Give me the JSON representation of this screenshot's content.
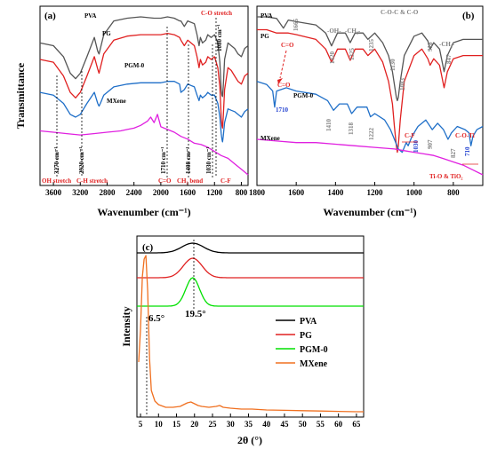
{
  "chart_data": [
    {
      "id": "a",
      "panel_label": "(a)",
      "type": "line",
      "xlabel": "Wavenumber (cm⁻¹)",
      "ylabel": "Transmittance",
      "xlim": [
        3800,
        700
      ],
      "x_reversed": true,
      "x_ticks": [
        3600,
        3200,
        2800,
        2400,
        2000,
        1600,
        1200,
        800
      ],
      "series": [
        {
          "name": "PVA",
          "color": "#555555",
          "x": [
            3800,
            3600,
            3450,
            3350,
            3270,
            3200,
            3100,
            2990,
            2940,
            2920,
            2900,
            2850,
            2700,
            2500,
            2300,
            2100,
            2000,
            1900,
            1800,
            1720,
            1700,
            1650,
            1600,
            1500,
            1460,
            1430,
            1410,
            1380,
            1330,
            1300,
            1250,
            1200,
            1150,
            1120,
            1100,
            1090,
            1080,
            1070,
            1050,
            1000,
            950,
            900,
            850,
            800,
            750,
            700
          ],
          "y": [
            0.74,
            0.72,
            0.64,
            0.52,
            0.48,
            0.52,
            0.64,
            0.78,
            0.68,
            0.66,
            0.7,
            0.8,
            0.9,
            0.92,
            0.93,
            0.92,
            0.92,
            0.93,
            0.92,
            0.9,
            0.9,
            0.86,
            0.9,
            0.88,
            0.8,
            0.72,
            0.78,
            0.74,
            0.76,
            0.8,
            0.78,
            0.8,
            0.74,
            0.6,
            0.4,
            0.36,
            0.35,
            0.42,
            0.62,
            0.74,
            0.72,
            0.7,
            0.66,
            0.64,
            0.7,
            0.72
          ]
        },
        {
          "name": "PG",
          "color": "#e02020",
          "x": [
            3800,
            3600,
            3450,
            3350,
            3270,
            3200,
            3100,
            2990,
            2940,
            2920,
            2900,
            2850,
            2700,
            2500,
            2300,
            2100,
            2000,
            1900,
            1800,
            1720,
            1700,
            1650,
            1600,
            1500,
            1460,
            1430,
            1410,
            1380,
            1330,
            1300,
            1250,
            1200,
            1150,
            1120,
            1100,
            1090,
            1080,
            1070,
            1050,
            1000,
            950,
            900,
            850,
            800,
            750,
            700
          ],
          "y": [
            0.62,
            0.6,
            0.5,
            0.38,
            0.34,
            0.38,
            0.5,
            0.64,
            0.55,
            0.52,
            0.56,
            0.66,
            0.76,
            0.79,
            0.8,
            0.8,
            0.8,
            0.81,
            0.8,
            0.78,
            0.76,
            0.72,
            0.76,
            0.72,
            0.64,
            0.56,
            0.62,
            0.58,
            0.6,
            0.64,
            0.62,
            0.64,
            0.56,
            0.42,
            0.2,
            0.14,
            0.12,
            0.2,
            0.4,
            0.56,
            0.54,
            0.5,
            0.46,
            0.44,
            0.5,
            0.52
          ]
        },
        {
          "name": "PGM-0",
          "color": "#1f6fc8",
          "x": [
            3800,
            3600,
            3450,
            3350,
            3270,
            3200,
            3100,
            2990,
            2940,
            2920,
            2900,
            2850,
            2700,
            2500,
            2300,
            2100,
            2000,
            1900,
            1800,
            1720,
            1700,
            1650,
            1600,
            1500,
            1460,
            1430,
            1410,
            1380,
            1330,
            1300,
            1250,
            1200,
            1150,
            1120,
            1100,
            1090,
            1080,
            1070,
            1050,
            1000,
            950,
            900,
            850,
            800,
            750,
            700
          ],
          "y": [
            0.38,
            0.36,
            0.3,
            0.22,
            0.2,
            0.22,
            0.3,
            0.38,
            0.3,
            0.28,
            0.3,
            0.36,
            0.42,
            0.44,
            0.45,
            0.45,
            0.45,
            0.46,
            0.46,
            0.44,
            0.38,
            0.4,
            0.44,
            0.42,
            0.36,
            0.32,
            0.36,
            0.34,
            0.36,
            0.38,
            0.36,
            0.36,
            0.3,
            0.2,
            0.08,
            0.04,
            0.02,
            0.06,
            0.16,
            0.26,
            0.25,
            0.24,
            0.22,
            0.2,
            0.24,
            0.26
          ]
        },
        {
          "name": "MXene",
          "color": "#e020e0",
          "x": [
            3800,
            3600,
            3400,
            3200,
            3000,
            2800,
            2600,
            2500,
            2400,
            2300,
            2200,
            2150,
            2100,
            2050,
            2000,
            1950,
            1900,
            1800,
            1700,
            1600,
            1500,
            1400,
            1300,
            1200,
            1100,
            1000,
            900,
            800,
            700
          ],
          "y": [
            0.1,
            0.09,
            0.08,
            0.07,
            0.08,
            0.09,
            0.1,
            0.11,
            0.12,
            0.14,
            0.17,
            0.2,
            0.16,
            0.22,
            0.13,
            0.12,
            0.11,
            0.09,
            0.06,
            0.04,
            0.01,
            0.0,
            -0.02,
            -0.05,
            -0.08,
            -0.1,
            -0.14,
            -0.18,
            -0.22
          ]
        }
      ],
      "annotations": [
        {
          "text": "OH stretch",
          "color": "#e02020"
        },
        {
          "text": "3270 cm⁻¹",
          "color": "#000000"
        },
        {
          "text": "2920 cm⁻¹",
          "color": "#000000"
        },
        {
          "text": "C-H stretch",
          "color": "#e02020"
        },
        {
          "text": "1710 cm⁻¹",
          "color": "#000000"
        },
        {
          "text": "C=O",
          "color": "#e02020"
        },
        {
          "text": "1408 cm⁻¹",
          "color": "#000000"
        },
        {
          "text": "CH₂ bend",
          "color": "#e02020"
        },
        {
          "text": "1030 cm⁻¹",
          "color": "#000000"
        },
        {
          "text": "C-F",
          "color": "#e02020"
        },
        {
          "text": "C-O stretch",
          "color": "#e02020"
        },
        {
          "text": "1080 cm⁻¹",
          "color": "#000000"
        }
      ]
    },
    {
      "id": "b",
      "panel_label": "(b)",
      "type": "line",
      "xlabel": "Wavenumber (cm⁻¹)",
      "xlim": [
        1800,
        650
      ],
      "x_reversed": true,
      "x_ticks": [
        1800,
        1600,
        1400,
        1200,
        1000,
        800
      ],
      "series": [
        {
          "name": "PVA",
          "color": "#555555",
          "x": [
            1800,
            1750,
            1700,
            1665,
            1640,
            1600,
            1500,
            1450,
            1420,
            1390,
            1350,
            1325,
            1300,
            1260,
            1235,
            1200,
            1160,
            1130,
            1110,
            1100,
            1090,
            1085,
            1080,
            1070,
            1050,
            1000,
            960,
            930,
            918,
            900,
            870,
            847,
            830,
            800,
            750,
            700,
            650
          ],
          "y": [
            0.9,
            0.9,
            0.89,
            0.83,
            0.88,
            0.87,
            0.85,
            0.8,
            0.72,
            0.8,
            0.8,
            0.74,
            0.8,
            0.8,
            0.76,
            0.8,
            0.74,
            0.66,
            0.56,
            0.48,
            0.4,
            0.38,
            0.4,
            0.5,
            0.66,
            0.78,
            0.8,
            0.75,
            0.7,
            0.74,
            0.7,
            0.56,
            0.66,
            0.74,
            0.76,
            0.76,
            0.76
          ]
        },
        {
          "name": "PG",
          "color": "#e02020",
          "x": [
            1800,
            1750,
            1700,
            1665,
            1640,
            1600,
            1500,
            1450,
            1420,
            1390,
            1350,
            1325,
            1300,
            1260,
            1235,
            1200,
            1160,
            1130,
            1110,
            1100,
            1090,
            1085,
            1080,
            1070,
            1050,
            1000,
            960,
            930,
            918,
            900,
            870,
            847,
            830,
            800,
            750,
            700,
            650
          ],
          "y": [
            0.82,
            0.82,
            0.8,
            0.8,
            0.8,
            0.79,
            0.76,
            0.7,
            0.62,
            0.7,
            0.7,
            0.63,
            0.7,
            0.7,
            0.66,
            0.7,
            0.62,
            0.5,
            0.36,
            0.22,
            0.1,
            0.06,
            0.1,
            0.26,
            0.5,
            0.66,
            0.7,
            0.64,
            0.6,
            0.64,
            0.6,
            0.46,
            0.56,
            0.64,
            0.66,
            0.66,
            0.66
          ]
        },
        {
          "name": "PGM-0",
          "color": "#1f6fc8",
          "x": [
            1800,
            1750,
            1720,
            1710,
            1700,
            1650,
            1600,
            1500,
            1440,
            1410,
            1380,
            1340,
            1318,
            1290,
            1240,
            1222,
            1200,
            1150,
            1120,
            1100,
            1080,
            1060,
            1040,
            1030,
            1010,
            980,
            940,
            907,
            880,
            850,
            827,
            810,
            780,
            740,
            720,
            710,
            700,
            680,
            650
          ],
          "y": [
            0.5,
            0.48,
            0.44,
            0.34,
            0.44,
            0.46,
            0.44,
            0.42,
            0.38,
            0.32,
            0.36,
            0.36,
            0.3,
            0.34,
            0.34,
            0.28,
            0.3,
            0.26,
            0.2,
            0.14,
            0.08,
            0.06,
            0.12,
            0.1,
            0.16,
            0.22,
            0.26,
            0.2,
            0.24,
            0.2,
            0.14,
            0.18,
            0.22,
            0.2,
            0.18,
            0.1,
            0.16,
            0.2,
            0.22
          ]
        },
        {
          "name": "MXene",
          "color": "#e020e0",
          "x": [
            1800,
            1700,
            1600,
            1500,
            1400,
            1300,
            1200,
            1100,
            1050,
            1000,
            950,
            900,
            850,
            800,
            750,
            700,
            650
          ],
          "y": [
            0.14,
            0.13,
            0.12,
            0.12,
            0.11,
            0.1,
            0.09,
            0.08,
            0.07,
            0.06,
            0.05,
            0.04,
            0.02,
            0.0,
            -0.02,
            -0.05,
            -0.08
          ]
        }
      ],
      "annotations": [
        {
          "text": "1665",
          "color": "#808080"
        },
        {
          "text": "-OH-",
          "color": "#808080"
        },
        {
          "text": "-CH₂-",
          "color": "#808080"
        },
        {
          "text": "C-O-C & C-O",
          "color": "#808080"
        },
        {
          "text": "918",
          "color": "#808080"
        },
        {
          "text": "-CH₂-",
          "color": "#808080"
        },
        {
          "text": "1420",
          "color": "#808080"
        },
        {
          "text": "1325",
          "color": "#808080"
        },
        {
          "text": "1235",
          "color": "#808080"
        },
        {
          "text": "1130",
          "color": "#808080"
        },
        {
          "text": "1083",
          "color": "#808080"
        },
        {
          "text": "847",
          "color": "#808080"
        },
        {
          "text": "C=O",
          "color": "#e02020"
        },
        {
          "text": "C=O",
          "color": "#e02020"
        },
        {
          "text": "1710",
          "color": "#1f3fd0"
        },
        {
          "text": "1410",
          "color": "#808080"
        },
        {
          "text": "1318",
          "color": "#808080"
        },
        {
          "text": "1222",
          "color": "#808080"
        },
        {
          "text": "C-F",
          "color": "#e02020"
        },
        {
          "text": "1030",
          "color": "#1f3fd0"
        },
        {
          "text": "907",
          "color": "#808080"
        },
        {
          "text": "827",
          "color": "#808080"
        },
        {
          "text": "C-O-Ti",
          "color": "#e02020"
        },
        {
          "text": "710",
          "color": "#1f3fd0"
        },
        {
          "text": "Ti-O & TiO₂",
          "color": "#e02020"
        }
      ]
    },
    {
      "id": "c",
      "panel_label": "(c)",
      "type": "line",
      "xlabel": "2θ (°)",
      "ylabel": "Intensity",
      "xlim": [
        4,
        67
      ],
      "x_ticks": [
        5,
        10,
        15,
        20,
        25,
        30,
        35,
        40,
        45,
        50,
        55,
        60,
        65
      ],
      "series": [
        {
          "name": "PVA",
          "color": "#000000",
          "peak": 19.5,
          "width": 3.0,
          "height": 0.055,
          "offset": 0.915
        },
        {
          "name": "PG",
          "color": "#e02020",
          "peak": 19.5,
          "width": 2.6,
          "height": 0.11,
          "offset": 0.775
        },
        {
          "name": "PGM-0",
          "color": "#00e000",
          "peak": 19.5,
          "width": 1.9,
          "height": 0.16,
          "offset": 0.615
        },
        {
          "name": "MXene",
          "color": "#f07020",
          "x": [
            4.5,
            5.0,
            5.5,
            6.0,
            6.5,
            7.0,
            7.5,
            8.0,
            9.0,
            10,
            12,
            14,
            16,
            17,
            18,
            19,
            20,
            21,
            22,
            24,
            26,
            27,
            28,
            30,
            33,
            36,
            40,
            45,
            50,
            55,
            60,
            65,
            67
          ],
          "y": [
            0.3,
            0.48,
            0.78,
            0.88,
            0.9,
            0.7,
            0.32,
            0.14,
            0.08,
            0.06,
            0.045,
            0.045,
            0.05,
            0.06,
            0.07,
            0.075,
            0.065,
            0.055,
            0.05,
            0.045,
            0.05,
            0.055,
            0.045,
            0.04,
            0.035,
            0.035,
            0.03,
            0.028,
            0.026,
            0.024,
            0.022,
            0.02,
            0.02
          ]
        }
      ],
      "annotations": [
        {
          "text": "6.5°",
          "color": "#000000"
        },
        {
          "text": "19.5°",
          "color": "#000000"
        }
      ],
      "legend_position": "right"
    }
  ]
}
